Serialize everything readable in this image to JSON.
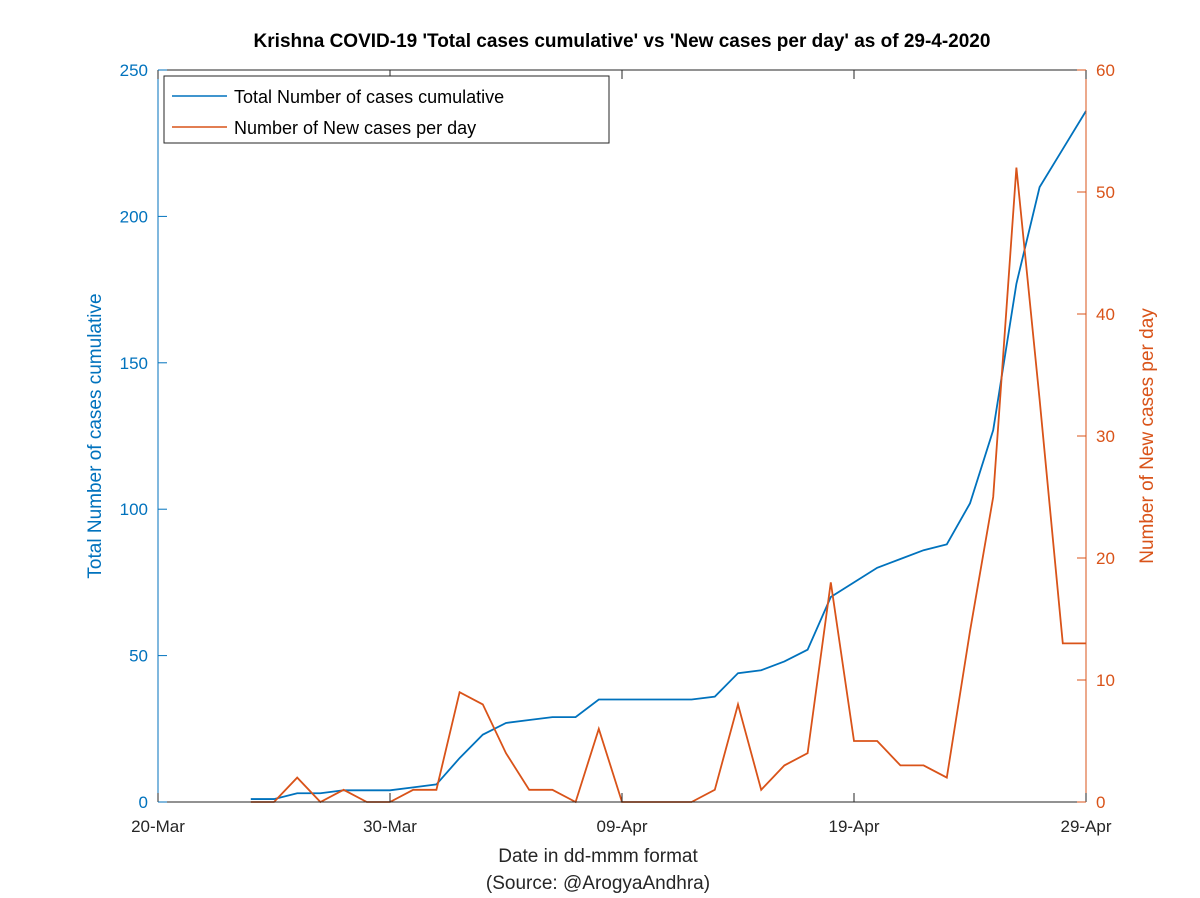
{
  "colors": {
    "left_series": "#0072BD",
    "right_series": "#D95319",
    "axis": "#262626",
    "background": "#ffffff"
  },
  "chart_data": {
    "type": "line",
    "title": "Krishna COVID-19 'Total cases cumulative' vs 'New cases per day' as of 29-4-2020",
    "xlabel": "Date in dd-mmm format",
    "xlabel2": "(Source: @ArogyaAndhra)",
    "ylabel_left": "Total Number of cases cumulative",
    "ylabel_right": "Number of New cases per day",
    "xlim": [
      "2020-03-20",
      "2020-04-29"
    ],
    "ylim_left": [
      0,
      250
    ],
    "ylim_right": [
      0,
      60
    ],
    "x_ticks": [
      "20-Mar",
      "30-Mar",
      "09-Apr",
      "19-Apr",
      "29-Apr"
    ],
    "y_ticks_left": [
      0,
      50,
      100,
      150,
      200,
      250
    ],
    "y_ticks_right": [
      0,
      10,
      20,
      30,
      40,
      50,
      60
    ],
    "grid": false,
    "legend_position": "top-left",
    "dates": [
      "2020-03-24",
      "2020-03-25",
      "2020-03-26",
      "2020-03-27",
      "2020-03-28",
      "2020-03-29",
      "2020-03-30",
      "2020-03-31",
      "2020-04-01",
      "2020-04-02",
      "2020-04-03",
      "2020-04-04",
      "2020-04-05",
      "2020-04-06",
      "2020-04-07",
      "2020-04-08",
      "2020-04-09",
      "2020-04-10",
      "2020-04-11",
      "2020-04-12",
      "2020-04-13",
      "2020-04-14",
      "2020-04-15",
      "2020-04-16",
      "2020-04-17",
      "2020-04-18",
      "2020-04-19",
      "2020-04-20",
      "2020-04-21",
      "2020-04-22",
      "2020-04-23",
      "2020-04-24",
      "2020-04-25",
      "2020-04-26",
      "2020-04-27",
      "2020-04-28",
      "2020-04-29"
    ],
    "series": [
      {
        "name": "Total Number of cases cumulative",
        "axis": "left",
        "values": [
          1,
          1,
          3,
          3,
          4,
          4,
          4,
          5,
          6,
          15,
          23,
          27,
          28,
          29,
          29,
          35,
          35,
          35,
          35,
          35,
          36,
          44,
          45,
          48,
          52,
          70,
          75,
          80,
          83,
          86,
          88,
          102,
          127,
          177,
          210,
          223,
          236
        ]
      },
      {
        "name": "Number of New cases per day",
        "axis": "right",
        "values": [
          0,
          0,
          2,
          0,
          1,
          0,
          0,
          1,
          1,
          9,
          8,
          4,
          1,
          1,
          0,
          6,
          0,
          0,
          0,
          0,
          1,
          8,
          1,
          3,
          4,
          18,
          5,
          5,
          3,
          3,
          2,
          14,
          25,
          52,
          33,
          13,
          13
        ]
      }
    ]
  }
}
